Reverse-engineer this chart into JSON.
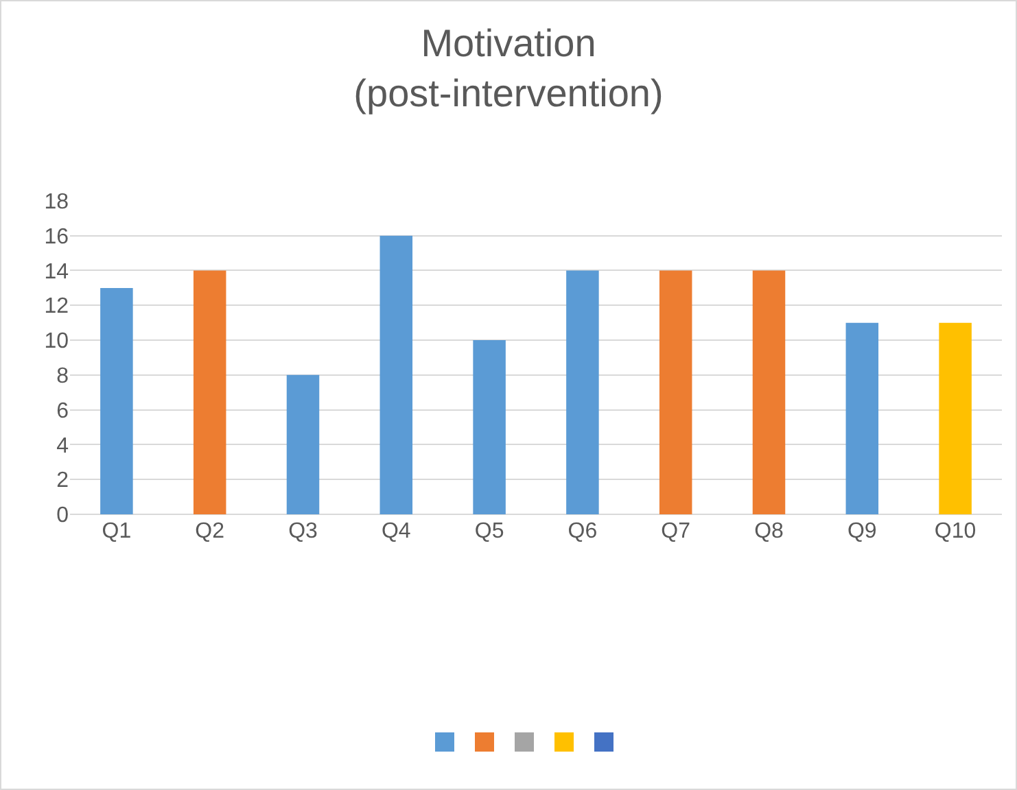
{
  "chart_data": {
    "type": "bar",
    "title": "Motivation\n(post-intervention)",
    "categories": [
      "Q1",
      "Q2",
      "Q3",
      "Q4",
      "Q5",
      "Q6",
      "Q7",
      "Q8",
      "Q9",
      "Q10"
    ],
    "values": [
      13,
      14,
      8,
      16,
      10,
      14,
      14,
      14,
      11,
      11
    ],
    "colors": [
      "#5b9bd5",
      "#ed7d31",
      "#5b9bd5",
      "#5b9bd5",
      "#5b9bd5",
      "#5b9bd5",
      "#ed7d31",
      "#ed7d31",
      "#5b9bd5",
      "#ffc000"
    ],
    "ylim": [
      0,
      18
    ],
    "yticks": [
      0,
      2,
      4,
      6,
      8,
      10,
      12,
      14,
      16,
      18
    ],
    "grid": "y"
  }
}
